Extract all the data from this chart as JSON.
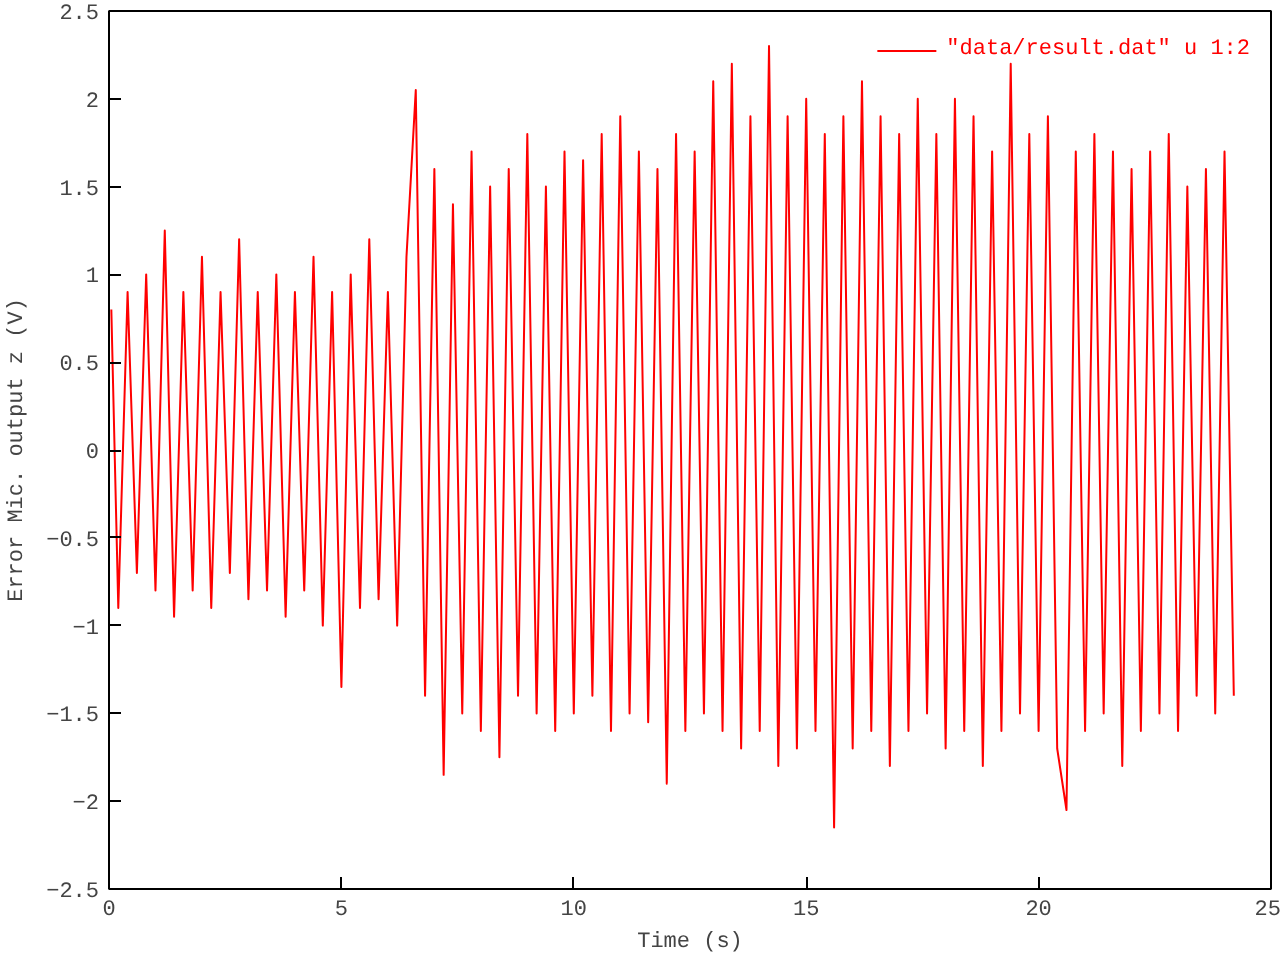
{
  "chart_data": {
    "type": "line",
    "xlabel": "Time (s)",
    "ylabel": "Error Mic. output z (V)",
    "xlim": [
      0,
      25
    ],
    "xticks": [
      0,
      5,
      10,
      15,
      20,
      25
    ],
    "ylim": [
      -2.5,
      2.5
    ],
    "yticks": [
      -2.5,
      -2,
      -1.5,
      -1,
      -0.5,
      0,
      0.5,
      1,
      1.5,
      2,
      2.5
    ],
    "grid": false,
    "legend": "top right",
    "marker": "none",
    "line_style": "solid",
    "x": [
      0.05,
      0.2,
      0.4,
      0.6,
      0.8,
      1.0,
      1.2,
      1.4,
      1.6,
      1.8,
      2.0,
      2.2,
      2.4,
      2.6,
      2.8,
      3.0,
      3.2,
      3.4,
      3.6,
      3.8,
      4.0,
      4.2,
      4.4,
      4.6,
      4.8,
      5.0,
      5.2,
      5.4,
      5.6,
      5.8,
      6.0,
      6.2,
      6.4,
      6.6,
      6.8,
      7.0,
      7.2,
      7.4,
      7.6,
      7.8,
      8.0,
      8.2,
      8.4,
      8.6,
      8.8,
      9.0,
      9.2,
      9.4,
      9.6,
      9.8,
      10.0,
      10.2,
      10.4,
      10.6,
      10.8,
      11.0,
      11.2,
      11.4,
      11.6,
      11.8,
      12.0,
      12.2,
      12.4,
      12.6,
      12.8,
      13.0,
      13.2,
      13.4,
      13.6,
      13.8,
      14.0,
      14.2,
      14.4,
      14.6,
      14.8,
      15.0,
      15.2,
      15.4,
      15.6,
      15.8,
      16.0,
      16.2,
      16.4,
      16.6,
      16.8,
      17.0,
      17.2,
      17.4,
      17.6,
      17.8,
      18.0,
      18.2,
      18.4,
      18.6,
      18.8,
      19.0,
      19.2,
      19.4,
      19.6,
      19.8,
      20.0,
      20.2,
      20.4,
      20.6,
      20.8,
      21.0,
      21.2,
      21.4,
      21.6,
      21.8,
      22.0,
      22.2,
      22.4,
      22.6,
      22.8,
      23.0,
      23.2,
      23.4,
      23.6,
      23.8,
      24.0,
      24.2
    ],
    "series": [
      {
        "name": "\"data/result.dat\" u 1:2",
        "color": "#ff0000",
        "values": [
          0.8,
          -0.9,
          0.9,
          -0.7,
          1.0,
          -0.8,
          1.25,
          -0.95,
          0.9,
          -0.8,
          1.1,
          -0.9,
          0.9,
          -0.7,
          1.2,
          -0.85,
          0.9,
          -0.8,
          1.0,
          -0.95,
          0.9,
          -0.8,
          1.1,
          -1.0,
          0.9,
          -1.35,
          1.0,
          -0.9,
          1.2,
          -0.85,
          0.9,
          -1.0,
          1.1,
          2.05,
          -1.4,
          1.6,
          -1.85,
          1.4,
          -1.5,
          1.7,
          -1.6,
          1.5,
          -1.75,
          1.6,
          -1.4,
          1.8,
          -1.5,
          1.5,
          -1.6,
          1.7,
          -1.5,
          1.65,
          -1.4,
          1.8,
          -1.6,
          1.9,
          -1.5,
          1.7,
          -1.55,
          1.6,
          -1.9,
          1.8,
          -1.6,
          1.7,
          -1.5,
          2.1,
          -1.6,
          2.2,
          -1.7,
          1.9,
          -1.6,
          2.3,
          -1.8,
          1.9,
          -1.7,
          2.0,
          -1.6,
          1.8,
          -2.15,
          1.9,
          -1.7,
          2.1,
          -1.6,
          1.9,
          -1.8,
          1.8,
          -1.6,
          2.0,
          -1.5,
          1.8,
          -1.7,
          2.0,
          -1.6,
          1.9,
          -1.8,
          1.7,
          -1.6,
          2.2,
          -1.5,
          1.8,
          -1.6,
          1.9,
          -1.7,
          -2.05,
          1.7,
          -1.6,
          1.8,
          -1.5,
          1.7,
          -1.8,
          1.6,
          -1.6,
          1.7,
          -1.5,
          1.8,
          -1.6,
          1.5,
          -1.4,
          1.6,
          -1.5,
          1.7,
          -1.4
        ]
      }
    ]
  }
}
